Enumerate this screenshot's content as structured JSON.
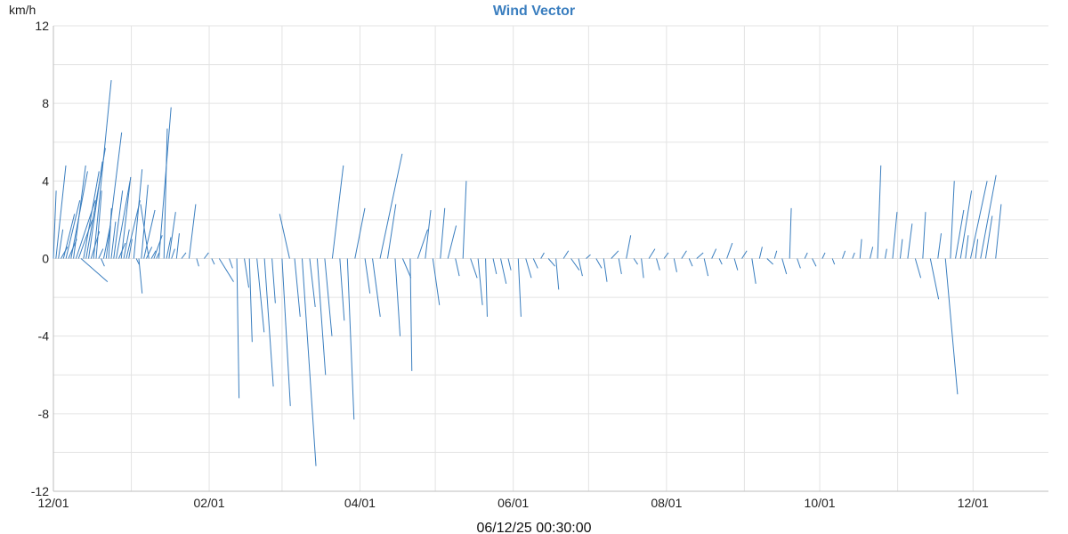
{
  "chart_data": {
    "type": "wind-vector",
    "title": "Wind Vector",
    "ylabel": "km/h",
    "xlabel": "06/12/25 00:30:00",
    "ylim": [
      -12,
      12
    ],
    "yticks": [
      -12,
      -8,
      -4,
      0,
      4,
      8,
      12
    ],
    "xlim": [
      "2023-12-01",
      "2024-12-31"
    ],
    "xticks": [
      {
        "date": "2023-12-01",
        "label": "12/01"
      },
      {
        "date": "2024-02-01",
        "label": "02/01"
      },
      {
        "date": "2024-04-01",
        "label": "04/01"
      },
      {
        "date": "2024-06-01",
        "label": "06/01"
      },
      {
        "date": "2024-08-01",
        "label": "08/01"
      },
      {
        "date": "2024-10-01",
        "label": "10/01"
      },
      {
        "date": "2024-12-01",
        "label": "12/01"
      }
    ],
    "grid": true,
    "series": [
      {
        "color": "#3a7ebf",
        "vectors": [
          {
            "date": "2023-12-01",
            "u": 0.5,
            "v": 3.5
          },
          {
            "date": "2023-12-02",
            "u": 1.8,
            "v": 4.8
          },
          {
            "date": "2023-12-03",
            "u": 0.8,
            "v": 1.5
          },
          {
            "date": "2023-12-04",
            "u": 1.2,
            "v": 0.6
          },
          {
            "date": "2023-12-05",
            "u": 2.0,
            "v": 2.3
          },
          {
            "date": "2023-12-06",
            "u": 2.5,
            "v": 3.0
          },
          {
            "date": "2023-12-07",
            "u": 1.5,
            "v": 1.0
          },
          {
            "date": "2023-12-08",
            "u": 3.0,
            "v": 4.5
          },
          {
            "date": "2023-12-09",
            "u": 2.2,
            "v": 4.8
          },
          {
            "date": "2023-12-10",
            "u": 3.5,
            "v": 3.0
          },
          {
            "date": "2023-12-11",
            "u": 2.5,
            "v": 2.0
          },
          {
            "date": "2023-12-12",
            "u": 4.8,
            "v": -1.2
          },
          {
            "date": "2023-12-13",
            "u": 2.8,
            "v": 4.5
          },
          {
            "date": "2023-12-14",
            "u": 3.5,
            "v": 5.7
          },
          {
            "date": "2023-12-15",
            "u": 2.5,
            "v": 5.0
          },
          {
            "date": "2023-12-16",
            "u": 1.5,
            "v": 1.4
          },
          {
            "date": "2023-12-17",
            "u": 3.2,
            "v": 9.2
          },
          {
            "date": "2023-12-18",
            "u": 1.0,
            "v": 3.5
          },
          {
            "date": "2023-12-19",
            "u": 0.8,
            "v": 0.5
          },
          {
            "date": "2023-12-20",
            "u": 0.6,
            "v": -0.4
          },
          {
            "date": "2023-12-21",
            "u": 1.2,
            "v": 1.7
          },
          {
            "date": "2023-12-22",
            "u": 2.8,
            "v": 6.5
          },
          {
            "date": "2023-12-23",
            "u": 0.5,
            "v": 2.6
          },
          {
            "date": "2023-12-24",
            "u": 0.8,
            "v": 1.9
          },
          {
            "date": "2023-12-25",
            "u": 1.6,
            "v": 3.5
          },
          {
            "date": "2023-12-26",
            "u": 2.5,
            "v": 4.0
          },
          {
            "date": "2023-12-27",
            "u": 1.2,
            "v": 0.8
          },
          {
            "date": "2023-12-28",
            "u": 1.7,
            "v": 4.2
          },
          {
            "date": "2023-12-29",
            "u": 1.0,
            "v": 1.5
          },
          {
            "date": "2023-12-30",
            "u": 2.5,
            "v": 3.0
          },
          {
            "date": "2023-12-31",
            "u": 0.6,
            "v": 1.0
          },
          {
            "date": "2024-01-02",
            "u": 1.5,
            "v": 4.6
          },
          {
            "date": "2024-01-03",
            "u": 0.5,
            "v": -0.3
          },
          {
            "date": "2024-01-04",
            "u": 0.6,
            "v": -1.8
          },
          {
            "date": "2024-01-05",
            "u": 1.2,
            "v": 3.8
          },
          {
            "date": "2024-01-06",
            "u": 2.0,
            "v": 2.5
          },
          {
            "date": "2024-01-07",
            "u": 1.0,
            "v": 0.6
          },
          {
            "date": "2024-01-08",
            "u": -1.5,
            "v": 2.8
          },
          {
            "date": "2024-01-09",
            "u": 0.8,
            "v": 0.4
          },
          {
            "date": "2024-01-10",
            "u": 1.5,
            "v": 1.2
          },
          {
            "date": "2024-01-11",
            "u": 0.5,
            "v": 0.3
          },
          {
            "date": "2024-01-12",
            "u": 2.2,
            "v": 7.8
          },
          {
            "date": "2024-01-14",
            "u": 0.6,
            "v": 6.7
          },
          {
            "date": "2024-01-15",
            "u": 0.8,
            "v": 1.1
          },
          {
            "date": "2024-01-16",
            "u": 1.2,
            "v": 2.4
          },
          {
            "date": "2024-01-17",
            "u": 0.6,
            "v": 0.5
          },
          {
            "date": "2024-01-19",
            "u": 0.5,
            "v": 1.3
          },
          {
            "date": "2024-01-21",
            "u": 0.8,
            "v": 0.3
          },
          {
            "date": "2024-01-24",
            "u": 1.2,
            "v": 2.8
          },
          {
            "date": "2024-01-27",
            "u": 0.4,
            "v": -0.4
          },
          {
            "date": "2024-01-30",
            "u": 0.8,
            "v": 0.3
          },
          {
            "date": "2024-02-02",
            "u": 0.5,
            "v": -0.3
          },
          {
            "date": "2024-02-05",
            "u": 2.6,
            "v": -1.2
          },
          {
            "date": "2024-02-09",
            "u": 0.6,
            "v": -0.5
          },
          {
            "date": "2024-02-12",
            "u": 0.4,
            "v": -7.2
          },
          {
            "date": "2024-02-15",
            "u": 0.8,
            "v": -1.5
          },
          {
            "date": "2024-02-17",
            "u": 0.5,
            "v": -4.3
          },
          {
            "date": "2024-02-20",
            "u": 1.3,
            "v": -3.8
          },
          {
            "date": "2024-02-23",
            "u": 1.6,
            "v": -6.6
          },
          {
            "date": "2024-02-26",
            "u": 0.6,
            "v": -2.3
          },
          {
            "date": "2024-03-01",
            "u": 1.5,
            "v": -7.6
          },
          {
            "date": "2024-03-04",
            "u": -1.8,
            "v": 2.3
          },
          {
            "date": "2024-03-06",
            "u": 1.0,
            "v": -3.0
          },
          {
            "date": "2024-03-09",
            "u": 2.5,
            "v": -10.7
          },
          {
            "date": "2024-03-12",
            "u": 1.0,
            "v": -2.5
          },
          {
            "date": "2024-03-15",
            "u": 1.5,
            "v": -6.0
          },
          {
            "date": "2024-03-18",
            "u": 1.3,
            "v": -4.0
          },
          {
            "date": "2024-03-21",
            "u": 2.0,
            "v": 4.8
          },
          {
            "date": "2024-03-24",
            "u": 0.8,
            "v": -3.2
          },
          {
            "date": "2024-03-27",
            "u": 1.2,
            "v": -8.3
          },
          {
            "date": "2024-03-30",
            "u": 1.8,
            "v": 2.6
          },
          {
            "date": "2024-04-03",
            "u": 0.9,
            "v": -1.8
          },
          {
            "date": "2024-04-06",
            "u": 1.4,
            "v": -3.0
          },
          {
            "date": "2024-04-09",
            "u": 4.0,
            "v": 5.4
          },
          {
            "date": "2024-04-12",
            "u": 1.5,
            "v": 2.8
          },
          {
            "date": "2024-04-15",
            "u": 0.9,
            "v": -4.0
          },
          {
            "date": "2024-04-18",
            "u": 1.5,
            "v": -1.0
          },
          {
            "date": "2024-04-21",
            "u": 0.3,
            "v": -5.8
          },
          {
            "date": "2024-04-24",
            "u": 1.8,
            "v": 1.5
          },
          {
            "date": "2024-04-27",
            "u": 1.0,
            "v": 2.5
          },
          {
            "date": "2024-04-30",
            "u": 1.2,
            "v": -2.4
          },
          {
            "date": "2024-05-03",
            "u": 0.8,
            "v": 2.6
          },
          {
            "date": "2024-05-06",
            "u": 1.5,
            "v": 1.7
          },
          {
            "date": "2024-05-09",
            "u": 0.7,
            "v": -0.9
          },
          {
            "date": "2024-05-12",
            "u": 0.6,
            "v": 4.0
          },
          {
            "date": "2024-05-15",
            "u": 1.2,
            "v": -1.0
          },
          {
            "date": "2024-05-18",
            "u": 0.8,
            "v": -2.4
          },
          {
            "date": "2024-05-21",
            "u": 0.3,
            "v": -3.0
          },
          {
            "date": "2024-05-24",
            "u": 0.6,
            "v": -0.8
          },
          {
            "date": "2024-05-27",
            "u": 1.0,
            "v": -1.3
          },
          {
            "date": "2024-05-30",
            "u": 0.5,
            "v": -0.6
          },
          {
            "date": "2024-06-03",
            "u": 0.5,
            "v": -3.0
          },
          {
            "date": "2024-06-06",
            "u": 1.0,
            "v": -1.0
          },
          {
            "date": "2024-06-09",
            "u": 0.8,
            "v": -0.5
          },
          {
            "date": "2024-06-12",
            "u": 0.6,
            "v": 0.3
          },
          {
            "date": "2024-06-15",
            "u": 1.2,
            "v": -0.4
          },
          {
            "date": "2024-06-18",
            "u": 0.5,
            "v": -1.6
          },
          {
            "date": "2024-06-21",
            "u": 0.9,
            "v": 0.4
          },
          {
            "date": "2024-06-24",
            "u": 1.5,
            "v": -0.6
          },
          {
            "date": "2024-06-27",
            "u": 0.7,
            "v": -0.9
          },
          {
            "date": "2024-06-30",
            "u": 0.8,
            "v": 0.2
          },
          {
            "date": "2024-07-04",
            "u": 1.0,
            "v": -0.5
          },
          {
            "date": "2024-07-07",
            "u": 0.6,
            "v": -1.2
          },
          {
            "date": "2024-07-10",
            "u": 1.3,
            "v": 0.4
          },
          {
            "date": "2024-07-13",
            "u": 0.5,
            "v": -0.8
          },
          {
            "date": "2024-07-16",
            "u": 0.8,
            "v": 1.2
          },
          {
            "date": "2024-07-19",
            "u": 0.7,
            "v": -0.3
          },
          {
            "date": "2024-07-22",
            "u": 0.4,
            "v": -1.0
          },
          {
            "date": "2024-07-25",
            "u": 1.1,
            "v": 0.5
          },
          {
            "date": "2024-07-28",
            "u": 0.6,
            "v": -0.6
          },
          {
            "date": "2024-07-31",
            "u": 0.8,
            "v": 0.3
          },
          {
            "date": "2024-08-04",
            "u": 0.5,
            "v": -0.7
          },
          {
            "date": "2024-08-07",
            "u": 0.9,
            "v": 0.4
          },
          {
            "date": "2024-08-10",
            "u": 0.6,
            "v": -0.4
          },
          {
            "date": "2024-08-13",
            "u": 1.2,
            "v": 0.3
          },
          {
            "date": "2024-08-16",
            "u": 0.7,
            "v": -0.9
          },
          {
            "date": "2024-08-19",
            "u": 0.8,
            "v": 0.5
          },
          {
            "date": "2024-08-22",
            "u": 0.5,
            "v": -0.3
          },
          {
            "date": "2024-08-25",
            "u": 1.0,
            "v": 0.8
          },
          {
            "date": "2024-08-28",
            "u": 0.6,
            "v": -0.6
          },
          {
            "date": "2024-08-31",
            "u": 0.9,
            "v": 0.4
          },
          {
            "date": "2024-09-04",
            "u": 0.7,
            "v": -1.3
          },
          {
            "date": "2024-09-07",
            "u": 0.5,
            "v": 0.6
          },
          {
            "date": "2024-09-10",
            "u": 1.1,
            "v": -0.3
          },
          {
            "date": "2024-09-13",
            "u": 0.4,
            "v": 0.4
          },
          {
            "date": "2024-09-16",
            "u": 0.8,
            "v": -0.8
          },
          {
            "date": "2024-09-19",
            "u": 0.3,
            "v": 2.6
          },
          {
            "date": "2024-09-22",
            "u": 0.6,
            "v": -0.5
          },
          {
            "date": "2024-09-25",
            "u": 0.5,
            "v": 0.3
          },
          {
            "date": "2024-09-28",
            "u": 0.7,
            "v": -0.4
          },
          {
            "date": "2024-10-02",
            "u": 0.5,
            "v": 0.3
          },
          {
            "date": "2024-10-06",
            "u": 0.4,
            "v": -0.3
          },
          {
            "date": "2024-10-10",
            "u": 0.5,
            "v": 0.4
          },
          {
            "date": "2024-10-14",
            "u": 0.4,
            "v": 0.3
          },
          {
            "date": "2024-10-17",
            "u": 0.3,
            "v": 1.0
          },
          {
            "date": "2024-10-21",
            "u": 0.5,
            "v": 0.6
          },
          {
            "date": "2024-10-24",
            "u": 0.6,
            "v": 4.8
          },
          {
            "date": "2024-10-27",
            "u": 0.3,
            "v": 0.5
          },
          {
            "date": "2024-10-30",
            "u": 0.8,
            "v": 2.4
          },
          {
            "date": "2024-11-02",
            "u": 0.4,
            "v": 1.0
          },
          {
            "date": "2024-11-05",
            "u": 0.8,
            "v": 1.8
          },
          {
            "date": "2024-11-08",
            "u": 1.0,
            "v": -1.0
          },
          {
            "date": "2024-11-11",
            "u": 0.5,
            "v": 2.4
          },
          {
            "date": "2024-11-14",
            "u": 1.5,
            "v": -2.1
          },
          {
            "date": "2024-11-17",
            "u": 0.6,
            "v": 1.3
          },
          {
            "date": "2024-11-20",
            "u": 2.2,
            "v": -7.0
          },
          {
            "date": "2024-11-22",
            "u": 0.7,
            "v": 4.0
          },
          {
            "date": "2024-11-24",
            "u": 1.5,
            "v": 2.5
          },
          {
            "date": "2024-11-26",
            "u": 2.0,
            "v": 3.5
          },
          {
            "date": "2024-11-28",
            "u": 0.5,
            "v": 1.2
          },
          {
            "date": "2024-11-30",
            "u": 3.0,
            "v": 4.0
          },
          {
            "date": "2024-12-02",
            "u": 0.4,
            "v": 1.0
          },
          {
            "date": "2024-12-04",
            "u": 2.8,
            "v": 4.3
          },
          {
            "date": "2024-12-06",
            "u": 1.2,
            "v": 2.2
          },
          {
            "date": "2024-12-10",
            "u": 1.0,
            "v": 2.8
          }
        ]
      }
    ]
  }
}
